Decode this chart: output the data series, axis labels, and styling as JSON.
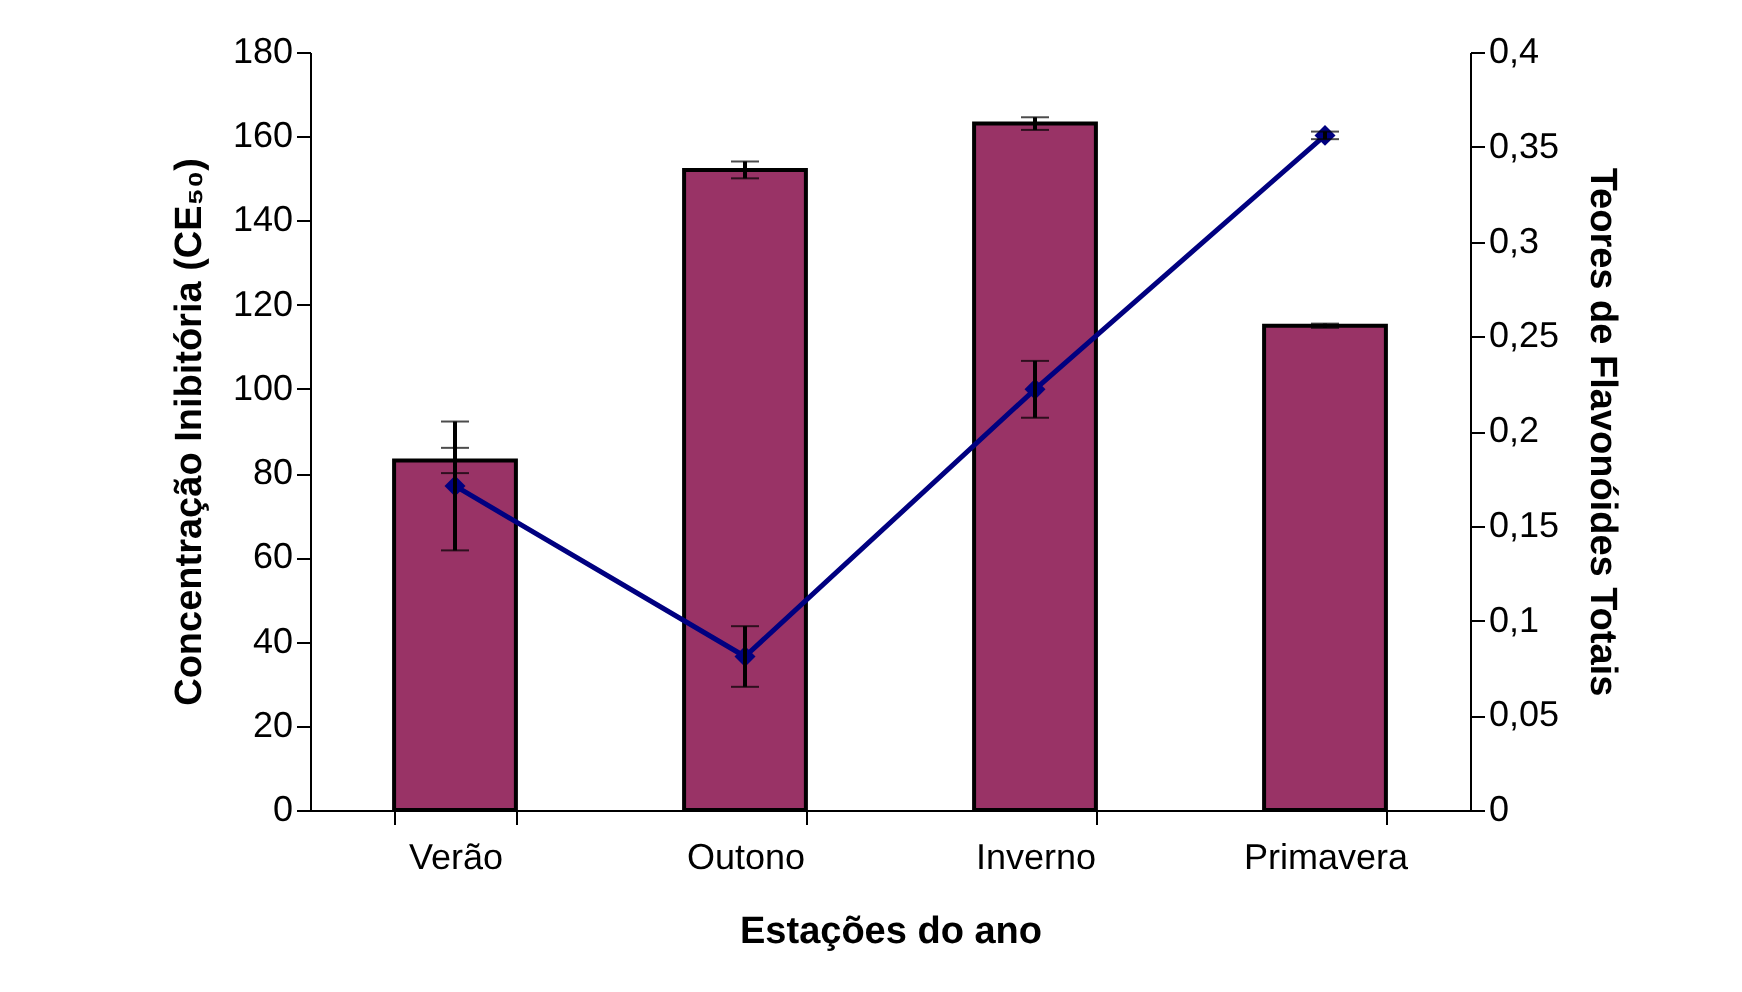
{
  "chart_data": {
    "type": "bar",
    "xlabel": "Estações do ano",
    "ylabel": "Concentração Inibitória (CE₅₀)",
    "y2label": "Teores de Flavonóides Totais",
    "categories": [
      "Verão",
      "Outono",
      "Inverno",
      "Primavera"
    ],
    "series": [
      {
        "color": "#993366",
        "values": [
          83,
          152,
          163,
          115
        ],
        "errors": [
          3,
          2,
          1.5,
          0.5
        ]
      },
      {
        "type": "line",
        "axis": "y2",
        "color": "#000080",
        "values": [
          0.171,
          0.081,
          0.222,
          0.356
        ],
        "errors": [
          0.034,
          0.016,
          0.015,
          0.002
        ]
      }
    ],
    "ylim": [
      0,
      180
    ],
    "yticks": [
      0,
      20,
      40,
      60,
      80,
      100,
      120,
      140,
      160,
      180
    ],
    "y2lim": [
      0,
      0.4
    ],
    "y2ticks": [
      0,
      {
        "value": 0.05,
        "label": "0,05"
      },
      {
        "value": 0.1,
        "label": "0,1"
      },
      {
        "value": 0.15,
        "label": "0,15"
      },
      {
        "value": 0.2,
        "label": "0,2"
      },
      {
        "value": 0.25,
        "label": "0,25"
      },
      {
        "value": 0.3,
        "label": "0,3"
      },
      {
        "value": 0.35,
        "label": "0,35"
      },
      {
        "value": 0.4,
        "label": "0,4"
      }
    ],
    "marker": "diamond",
    "grid": false
  }
}
